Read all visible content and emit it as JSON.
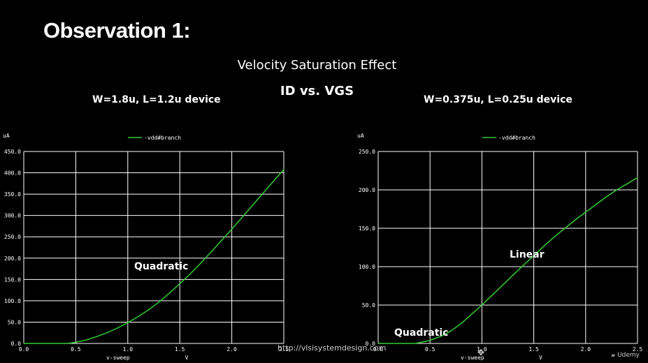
{
  "slide": {
    "title": "Observation 1:",
    "subtitle1": "Velocity Saturation Effect",
    "subtitle2": "ID vs. VGS",
    "url": "http://vlsisystemdesign.com",
    "brand": "Udemy"
  },
  "colors": {
    "trace": "#33cc33",
    "grid": "#ffffff",
    "background": "#000000"
  },
  "chart_data": [
    {
      "type": "line",
      "device": "W=1.8u, L=1.2u device",
      "yunit": "uA",
      "xlabel": "v-sweep",
      "xunit": "V",
      "legend": "-vdd#branch",
      "xlim": [
        0,
        2.5
      ],
      "ylim": [
        0,
        450
      ],
      "xticks": [
        "0.0",
        "0.5",
        "1.0",
        "1.5",
        "2.0",
        "2.5"
      ],
      "yticks": [
        "450.0",
        "400.0",
        "350.0",
        "300.0",
        "250.0",
        "200.0",
        "150.0",
        "100.0",
        "50.0",
        "0.0"
      ],
      "annotation": "Quadratic",
      "series": [
        {
          "x": [
            0,
            0.4,
            0.45,
            0.5,
            0.6,
            0.7,
            0.8,
            0.9,
            1.0,
            1.1,
            1.2,
            1.3,
            1.4,
            1.5,
            1.6,
            1.7,
            1.8,
            1.9,
            2.0,
            2.1,
            2.2,
            2.3,
            2.4,
            2.5
          ],
          "values": [
            0,
            0,
            1,
            3,
            8,
            16,
            25,
            36,
            49,
            63,
            79,
            97,
            118,
            140,
            163,
            188,
            214,
            241,
            268,
            296,
            324,
            352,
            380,
            408
          ]
        }
      ]
    },
    {
      "type": "line",
      "device": "W=0.375u, L=0.25u device",
      "yunit": "uA",
      "xlabel": "v-sweep",
      "xunit": "V",
      "legend": "-vdd#branch",
      "xlim": [
        0,
        2.5
      ],
      "ylim": [
        0,
        250
      ],
      "xticks": [
        "0.0",
        "0.5",
        "1.0",
        "1.5",
        "2.0",
        "2.5"
      ],
      "yticks": [
        "250.0",
        "200.0",
        "150.0",
        "100.0",
        "50.0",
        "0.0"
      ],
      "annotations": [
        "Linear",
        "Quadratic"
      ],
      "series": [
        {
          "x": [
            0,
            0.35,
            0.4,
            0.5,
            0.6,
            0.7,
            0.8,
            0.9,
            1.0,
            1.1,
            1.2,
            1.3,
            1.4,
            1.5,
            1.6,
            1.7,
            1.8,
            1.9,
            2.0,
            2.1,
            2.2,
            2.3,
            2.4,
            2.5
          ],
          "values": [
            0,
            0,
            1,
            4,
            9,
            16,
            26,
            38,
            50,
            63,
            76,
            89,
            102,
            114,
            127,
            139,
            150,
            161,
            171,
            181,
            191,
            200,
            208,
            216
          ]
        }
      ]
    }
  ]
}
